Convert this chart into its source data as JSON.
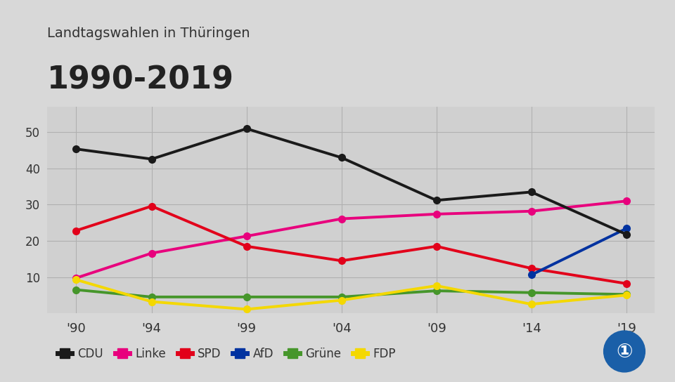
{
  "title_top": "Landtagswahlen in Thüringen",
  "title_main": "1990-2019",
  "years": [
    1990,
    1994,
    1999,
    2004,
    2009,
    2014,
    2019
  ],
  "year_labels": [
    "'90",
    "'94",
    "'99",
    "'04",
    "'09",
    "'14",
    "'19"
  ],
  "series": {
    "CDU": {
      "values": [
        45.4,
        42.6,
        51.0,
        43.0,
        31.2,
        33.5,
        21.8
      ],
      "color": "#1a1a1a",
      "zorder": 5
    },
    "Linke": {
      "values": [
        9.7,
        16.6,
        21.3,
        26.1,
        27.4,
        28.2,
        31.0
      ],
      "color": "#e8007d",
      "zorder": 4
    },
    "SPD": {
      "values": [
        22.8,
        29.6,
        18.5,
        14.5,
        18.5,
        12.4,
        8.2
      ],
      "color": "#e2001a",
      "zorder": 4
    },
    "AfD": {
      "values": [
        0.0,
        0.0,
        0.0,
        0.0,
        0.0,
        10.6,
        23.4
      ],
      "color": "#0032a0",
      "zorder": 4
    },
    "Grüne": {
      "values": [
        6.5,
        4.5,
        4.5,
        4.5,
        6.2,
        5.7,
        5.2
      ],
      "color": "#46962b",
      "zorder": 4
    },
    "FDP": {
      "values": [
        9.3,
        3.2,
        1.1,
        3.6,
        7.6,
        2.5,
        5.0
      ],
      "color": "#f4d800",
      "zorder": 4
    }
  },
  "ylim": [
    0,
    57
  ],
  "yticks": [
    10,
    20,
    30,
    40,
    50
  ],
  "background_color": "#d8d8d8",
  "plot_background_color": "#d0d0d0",
  "grid_color": "#b0b0b0",
  "linewidth": 2.8,
  "markersize": 7
}
